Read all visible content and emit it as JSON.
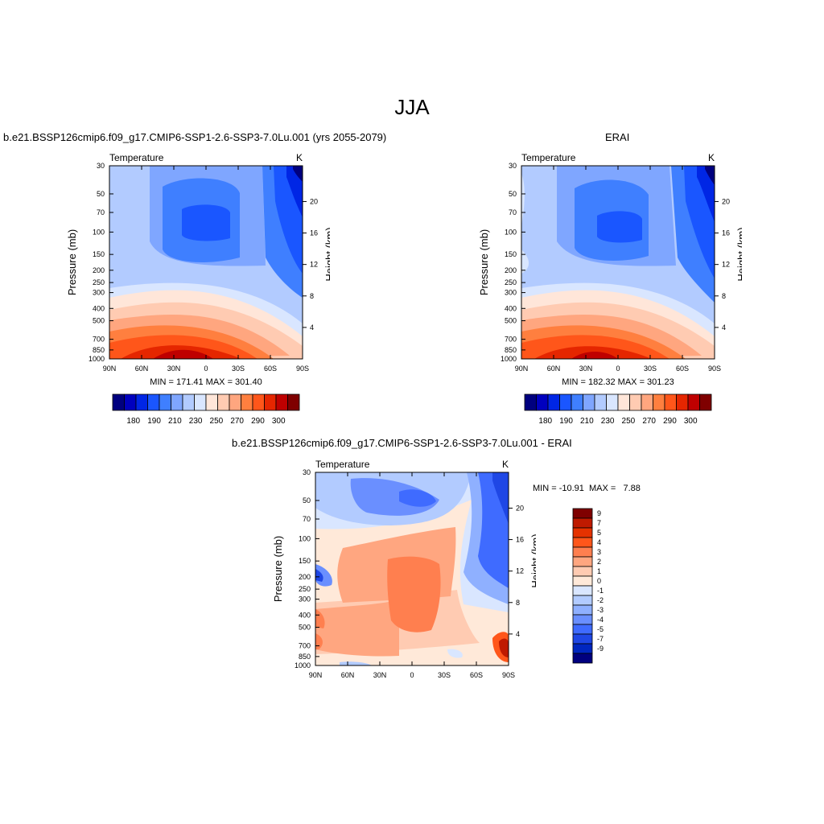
{
  "page_title": "JJA",
  "colors": {
    "scale_abs": [
      "#00007f",
      "#0000bf",
      "#0026e5",
      "#1a56ff",
      "#3f7fff",
      "#7fa6ff",
      "#b2cbff",
      "#d9e6ff",
      "#ffe6d9",
      "#ffcbb2",
      "#ffa67f",
      "#ff7f3f",
      "#ff561a",
      "#e52600",
      "#bf0000",
      "#7f0000"
    ],
    "scale_diff": [
      "#7f0000",
      "#bf1a00",
      "#e53200",
      "#ff561a",
      "#ff7f4f",
      "#ffa680",
      "#ffcbb2",
      "#ffe9d9",
      "#d9e6ff",
      "#b2cbff",
      "#8fb0ff",
      "#6a8fff",
      "#3f6bff",
      "#1f47e5",
      "#0026bf",
      "#00007f"
    ]
  },
  "chart_data": [
    {
      "type": "heatmap",
      "title": "b.e21.BSSP126cmip6.f09_g17.CMIP6-SSP1-2.6-SSP3-7.0Lu.001 (yrs 2055-2079)",
      "left_label": "Temperature",
      "right_label": "K",
      "xlabel": "",
      "ylabel": "Pressure (mb)",
      "y2label": "Height (km)",
      "x_ticks": [
        "90N",
        "60N",
        "30N",
        "0",
        "30S",
        "60S",
        "90S"
      ],
      "y_ticks": [
        "30",
        "50",
        "70",
        "100",
        "150",
        "200",
        "250",
        "300",
        "400",
        "500",
        "700",
        "850",
        "1000"
      ],
      "y2_ticks": [
        "20",
        "16",
        "12",
        "8",
        "4"
      ],
      "stats": "MIN = 171.41  MAX = 301.40",
      "min": 171.41,
      "max": 301.4,
      "colorbar_labels": [
        "180",
        "190",
        "210",
        "230",
        "250",
        "270",
        "290",
        "300"
      ]
    },
    {
      "type": "heatmap",
      "title": "ERAI",
      "left_label": "Temperature",
      "right_label": "K",
      "xlabel": "",
      "ylabel": "Pressure (mb)",
      "y2label": "Height (km)",
      "x_ticks": [
        "90N",
        "60N",
        "30N",
        "0",
        "30S",
        "60S",
        "90S"
      ],
      "y_ticks": [
        "30",
        "50",
        "70",
        "100",
        "150",
        "200",
        "250",
        "300",
        "400",
        "500",
        "700",
        "850",
        "1000"
      ],
      "y2_ticks": [
        "20",
        "16",
        "12",
        "8",
        "4"
      ],
      "stats": "MIN = 182.32  MAX = 301.23",
      "min": 182.32,
      "max": 301.23,
      "colorbar_labels": [
        "180",
        "190",
        "210",
        "230",
        "250",
        "270",
        "290",
        "300"
      ]
    },
    {
      "type": "heatmap",
      "title": "b.e21.BSSP126cmip6.f09_g17.CMIP6-SSP1-2.6-SSP3-7.0Lu.001 - ERAI",
      "left_label": "Temperature",
      "right_label": "K",
      "xlabel": "",
      "ylabel": "Pressure (mb)",
      "y2label": "Height (km)",
      "x_ticks": [
        "90N",
        "60N",
        "30N",
        "0",
        "30S",
        "60S",
        "90S"
      ],
      "y_ticks": [
        "30",
        "50",
        "70",
        "100",
        "150",
        "200",
        "250",
        "300",
        "400",
        "500",
        "700",
        "850",
        "1000"
      ],
      "y2_ticks": [
        "20",
        "16",
        "12",
        "8",
        "4"
      ],
      "stats": "MIN = -10.91  MAX =   7.88",
      "min": -10.91,
      "max": 7.88,
      "colorbar_labels": [
        "9",
        "7",
        "5",
        "4",
        "3",
        "2",
        "1",
        "0",
        "-1",
        "-2",
        "-3",
        "-4",
        "-5",
        "-7",
        "-9"
      ]
    }
  ]
}
